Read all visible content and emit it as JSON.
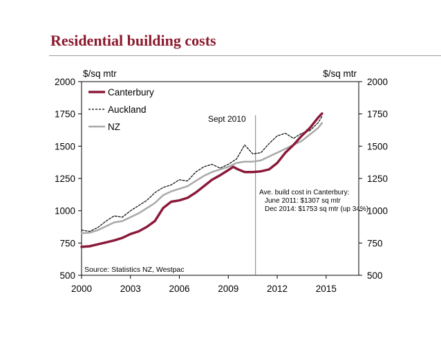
{
  "header": {
    "title": "Residential building costs"
  },
  "chart_data": {
    "type": "line",
    "title": "Residential building costs",
    "ylabel_left": "$/sq mtr",
    "ylabel_right": "$/sq mtr",
    "xlim": [
      2000,
      2017
    ],
    "ylim": [
      500,
      2000
    ],
    "x_ticks": [
      2000,
      2003,
      2006,
      2009,
      2012,
      2015
    ],
    "x_tick_labels": [
      "2000",
      "2003",
      "2006",
      "2009",
      "2012",
      "2015"
    ],
    "y_ticks": [
      500,
      750,
      1000,
      1250,
      1500,
      1750,
      2000
    ],
    "y_tick_labels": [
      "500",
      "750",
      "1000",
      "1250",
      "1500",
      "1750",
      "2000"
    ],
    "legend_position": "top-left",
    "series": [
      {
        "name": "Canterbury",
        "color": "#8b1a3a",
        "style": "solid-thick",
        "x": [
          2000.0,
          2000.5,
          2001.0,
          2001.5,
          2002.0,
          2002.5,
          2003.0,
          2003.5,
          2004.0,
          2004.5,
          2005.0,
          2005.5,
          2006.0,
          2006.5,
          2007.0,
          2007.5,
          2008.0,
          2008.5,
          2009.0,
          2009.3,
          2009.6,
          2010.0,
          2010.5,
          2011.0,
          2011.5,
          2012.0,
          2012.5,
          2013.0,
          2013.5,
          2014.0,
          2014.5,
          2014.75
        ],
        "values": [
          720,
          725,
          740,
          755,
          770,
          790,
          820,
          840,
          875,
          920,
          1020,
          1070,
          1080,
          1100,
          1140,
          1190,
          1240,
          1275,
          1315,
          1340,
          1320,
          1300,
          1300,
          1305,
          1320,
          1370,
          1450,
          1510,
          1580,
          1640,
          1720,
          1753
        ]
      },
      {
        "name": "Auckland",
        "color": "#000000",
        "style": "dashed",
        "x": [
          2000.0,
          2000.5,
          2001.0,
          2001.5,
          2002.0,
          2002.5,
          2003.0,
          2003.5,
          2004.0,
          2004.5,
          2005.0,
          2005.5,
          2006.0,
          2006.5,
          2007.0,
          2007.5,
          2008.0,
          2008.5,
          2009.0,
          2009.5,
          2010.0,
          2010.5,
          2011.0,
          2011.5,
          2012.0,
          2012.5,
          2013.0,
          2013.5,
          2014.0,
          2014.5,
          2014.75
        ],
        "values": [
          850,
          840,
          870,
          920,
          960,
          950,
          1000,
          1040,
          1080,
          1140,
          1180,
          1200,
          1240,
          1230,
          1300,
          1340,
          1360,
          1330,
          1360,
          1400,
          1510,
          1440,
          1450,
          1520,
          1580,
          1600,
          1560,
          1600,
          1620,
          1680,
          1730
        ]
      },
      {
        "name": "NZ",
        "color": "#a8a8a8",
        "style": "solid",
        "x": [
          2000.0,
          2000.5,
          2001.0,
          2001.5,
          2002.0,
          2002.5,
          2003.0,
          2003.5,
          2004.0,
          2004.5,
          2005.0,
          2005.5,
          2006.0,
          2006.5,
          2007.0,
          2007.5,
          2008.0,
          2008.5,
          2009.0,
          2009.5,
          2010.0,
          2010.5,
          2011.0,
          2011.5,
          2012.0,
          2012.5,
          2013.0,
          2013.5,
          2014.0,
          2014.5,
          2014.75
        ],
        "values": [
          825,
          830,
          850,
          880,
          910,
          920,
          950,
          980,
          1020,
          1060,
          1120,
          1150,
          1170,
          1190,
          1230,
          1270,
          1300,
          1320,
          1340,
          1370,
          1380,
          1380,
          1390,
          1420,
          1450,
          1480,
          1510,
          1540,
          1590,
          1640,
          1680
        ]
      }
    ],
    "reference_line": {
      "x": 2010.67,
      "label": "Sept 2010"
    },
    "annotations": {
      "heading": "Ave. build cost in Canterbury:",
      "line1": "June 2011: $1307 sq mtr",
      "line2": "Dec 2014: $1753 sq mtr (up 34%)"
    },
    "source": "Source: Statistics NZ, Westpac"
  }
}
